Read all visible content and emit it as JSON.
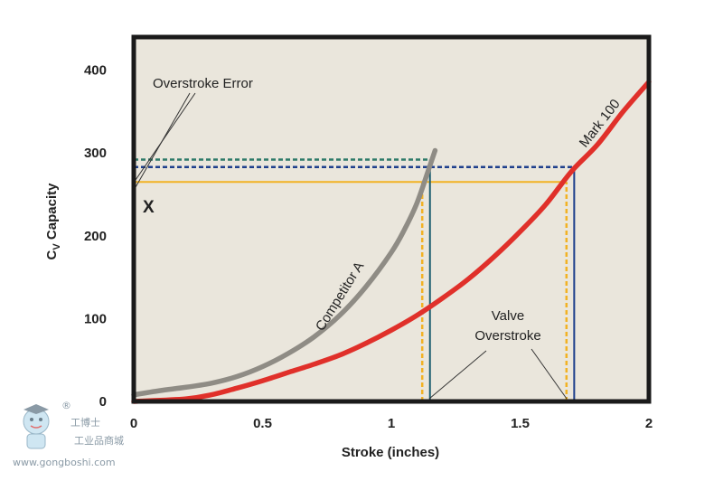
{
  "chart_data": {
    "type": "line",
    "xlabel": "Stroke (inches)",
    "ylabel_main": "C",
    "ylabel_sub": "V",
    "ylabel_rest": " Capacity",
    "xlim": [
      0,
      2
    ],
    "ylim": [
      0,
      440
    ],
    "x_ticks": [
      0,
      0.5,
      1,
      1.5,
      2
    ],
    "x_tick_labels": [
      "0",
      "0.5",
      "1",
      "1.5",
      "2"
    ],
    "y_ticks": [
      0,
      100,
      200,
      300,
      400
    ],
    "y_tick_labels": [
      "0",
      "100",
      "200",
      "300",
      "400"
    ],
    "series": [
      {
        "name": "Competitor A",
        "color": "#8f8c85",
        "points": [
          [
            0,
            8
          ],
          [
            0.1,
            13
          ],
          [
            0.2,
            17
          ],
          [
            0.3,
            22
          ],
          [
            0.4,
            30
          ],
          [
            0.5,
            42
          ],
          [
            0.6,
            58
          ],
          [
            0.7,
            78
          ],
          [
            0.8,
            104
          ],
          [
            0.9,
            138
          ],
          [
            1.0,
            180
          ],
          [
            1.05,
            207
          ],
          [
            1.1,
            240
          ],
          [
            1.15,
            285
          ],
          [
            1.17,
            303
          ]
        ]
      },
      {
        "name": "Mark 100",
        "color": "#e0302a",
        "points": [
          [
            0,
            0
          ],
          [
            0.2,
            3
          ],
          [
            0.3,
            8
          ],
          [
            0.4,
            16
          ],
          [
            0.5,
            25
          ],
          [
            0.6,
            35
          ],
          [
            0.7,
            45
          ],
          [
            0.8,
            56
          ],
          [
            0.9,
            70
          ],
          [
            1.0,
            86
          ],
          [
            1.1,
            104
          ],
          [
            1.2,
            125
          ],
          [
            1.3,
            148
          ],
          [
            1.4,
            175
          ],
          [
            1.5,
            205
          ],
          [
            1.6,
            238
          ],
          [
            1.7,
            278
          ],
          [
            1.8,
            310
          ],
          [
            1.9,
            350
          ],
          [
            2.0,
            386
          ]
        ]
      }
    ],
    "reference_lines": [
      {
        "name": "competitor-a-error-level",
        "style": "dashed",
        "color": "#2d7a68",
        "from": [
          0,
          292
        ],
        "to": [
          1.15,
          292
        ]
      },
      {
        "name": "mark-100-error-level",
        "style": "dashed",
        "color": "#1e3f8c",
        "from": [
          0,
          283
        ],
        "to": [
          1.71,
          283
        ]
      },
      {
        "name": "x-capacity-level",
        "style": "solid",
        "color": "#f2b224",
        "from": [
          0,
          265
        ],
        "to": [
          1.67,
          265
        ]
      },
      {
        "name": "competitor-a-stroke",
        "style": "solid",
        "color": "#1c5e70",
        "from": [
          1.15,
          0
        ],
        "to": [
          1.15,
          292
        ]
      },
      {
        "name": "mark-100-stroke",
        "style": "solid",
        "color": "#1e3f8c",
        "from": [
          1.71,
          0
        ],
        "to": [
          1.71,
          283
        ]
      },
      {
        "name": "competitor-a-x-stroke",
        "style": "dashed",
        "color": "#f2b224",
        "from": [
          1.12,
          0
        ],
        "to": [
          1.12,
          265
        ]
      },
      {
        "name": "mark-100-x-stroke",
        "style": "dashed",
        "color": "#f2b224",
        "from": [
          1.68,
          0
        ],
        "to": [
          1.68,
          265
        ]
      }
    ],
    "annotations": {
      "overstroke_error": "Overstroke Error",
      "x_marker": "X",
      "valve_line1": "Valve",
      "valve_line2": "Overstroke",
      "competitor_label": "Competitor A",
      "mark100_label": "Mark 100"
    },
    "plot_background": "#eae6dc",
    "frame_color": "#1a1a1a"
  },
  "watermark": {
    "brand": "工博士",
    "brand_sub": "工业品商城",
    "url": "www.gongboshi.com",
    "registered": "®"
  }
}
